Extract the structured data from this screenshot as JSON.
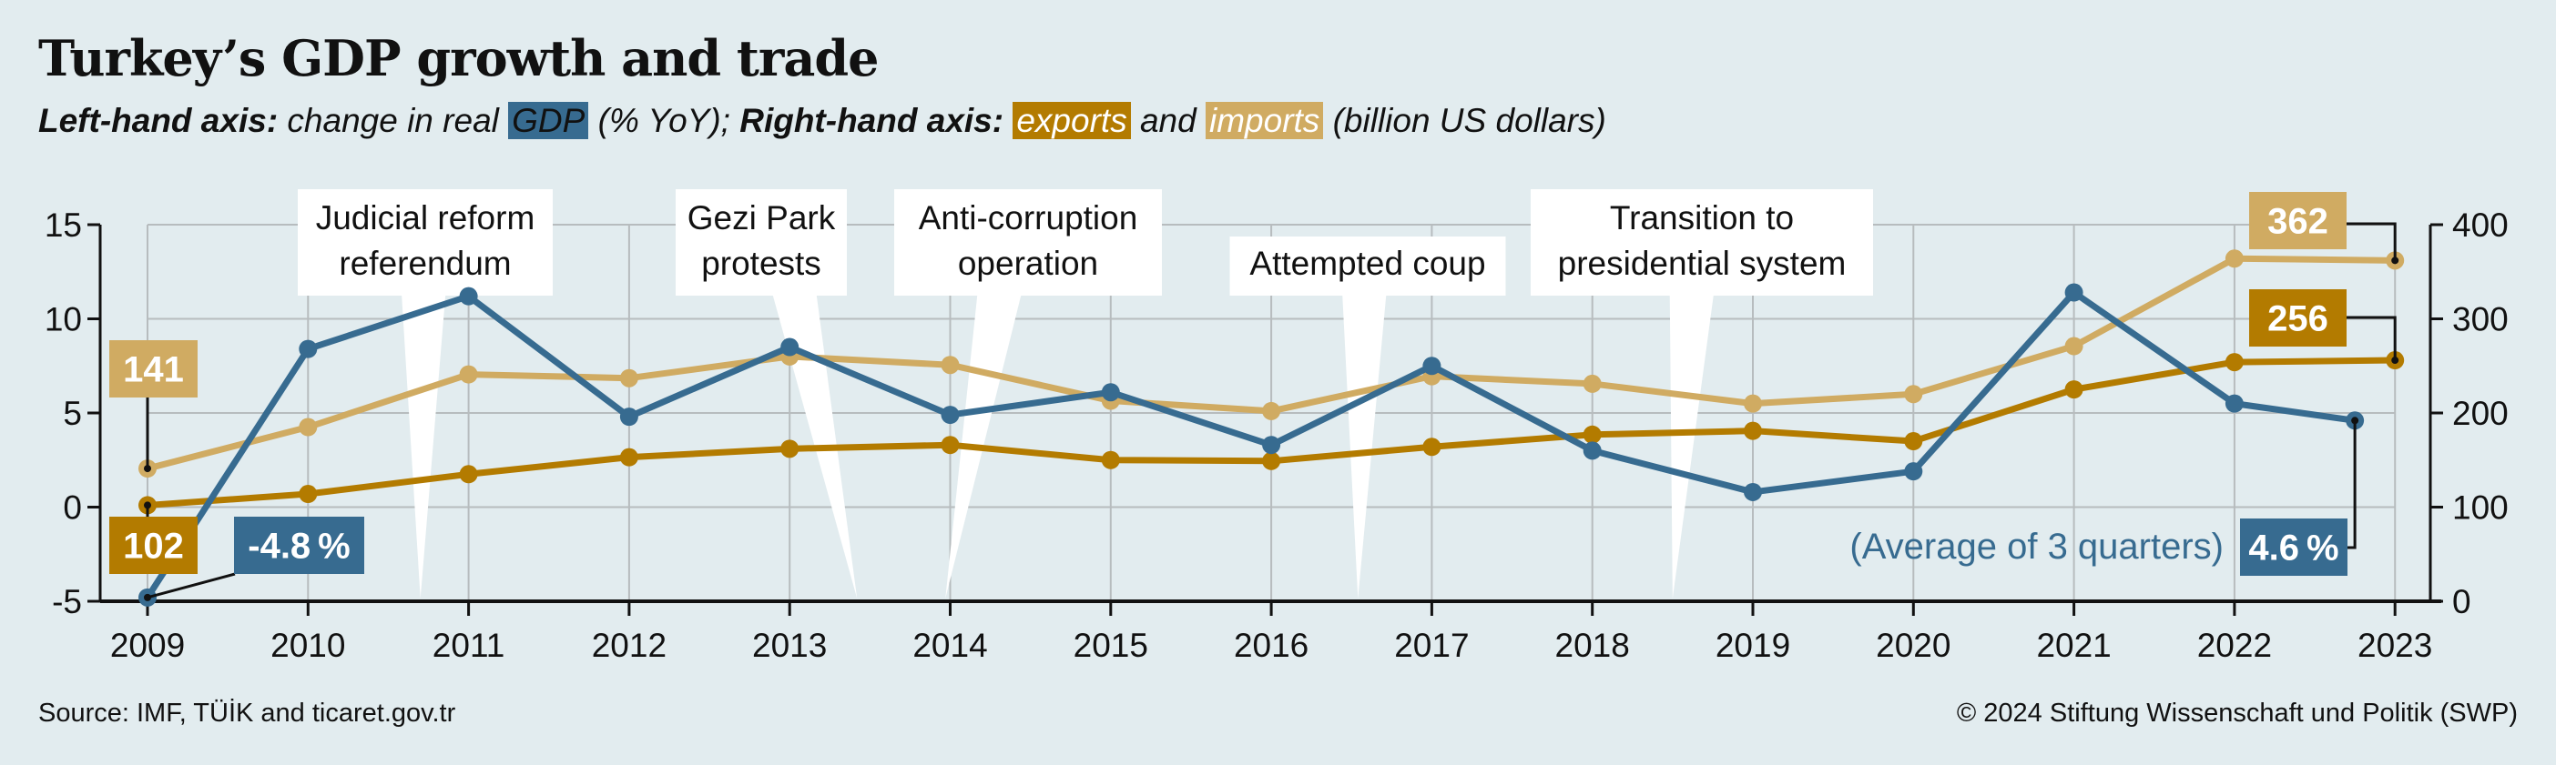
{
  "header": {
    "title": "Turkey’s GDP growth and trade",
    "subtitle": {
      "left_label": "Left-hand axis:",
      "left_text": " change in real ",
      "gdp_chip": "GDP",
      "left_unit": " (% YoY); ",
      "right_label": "Right-hand axis:",
      "exports_chip": "exports",
      "and_text": " and ",
      "imports_chip": "imports",
      "right_unit": " (billion US dollars)"
    }
  },
  "colors": {
    "background": "#e2ecef",
    "gdp": "#376b90",
    "exports": "#b37b00",
    "imports": "#d0ab62",
    "grid": "#b7bcbe",
    "annotation_box": "#ffffff"
  },
  "chart_data": {
    "type": "line",
    "title": "Turkey’s GDP growth and trade",
    "x": [
      2009,
      2010,
      2011,
      2012,
      2013,
      2014,
      2015,
      2016,
      2017,
      2018,
      2019,
      2020,
      2021,
      2022,
      2023
    ],
    "x_tick_labels": [
      "2009",
      "2010",
      "2011",
      "2012",
      "2013",
      "2014",
      "2015",
      "2016",
      "2017",
      "2018",
      "2019",
      "2020",
      "2021",
      "2022",
      "2023"
    ],
    "left_axis": {
      "label": "change in real GDP (% YoY)",
      "ylim": [
        -5,
        15
      ],
      "ticks": [
        -5,
        0,
        5,
        10,
        15
      ],
      "tick_labels": [
        "-5",
        "0",
        "5",
        "10",
        "15"
      ]
    },
    "right_axis": {
      "label": "exports and imports (billion US dollars)",
      "ylim": [
        0,
        400
      ],
      "ticks": [
        0,
        100,
        200,
        300,
        400
      ],
      "tick_labels": [
        "0",
        "100",
        "200",
        "300",
        "400"
      ]
    },
    "grid": true,
    "series": [
      {
        "name": "GDP",
        "axis": "left",
        "x": [
          2009,
          2010,
          2011,
          2012,
          2013,
          2014,
          2015,
          2016,
          2017,
          2018,
          2019,
          2020,
          2021,
          2022,
          2022.75
        ],
        "values": [
          -4.8,
          8.4,
          11.2,
          4.8,
          8.5,
          4.9,
          6.1,
          3.3,
          7.5,
          3.0,
          0.8,
          1.9,
          11.4,
          5.5,
          4.6
        ]
      },
      {
        "name": "imports",
        "axis": "right",
        "x": [
          2009,
          2010,
          2011,
          2012,
          2013,
          2014,
          2015,
          2016,
          2017,
          2018,
          2019,
          2020,
          2021,
          2022,
          2023
        ],
        "values": [
          141,
          185,
          241,
          237,
          260,
          251,
          213,
          202,
          239,
          231,
          210,
          220,
          271,
          364,
          362
        ]
      },
      {
        "name": "exports",
        "axis": "right",
        "x": [
          2009,
          2010,
          2011,
          2012,
          2013,
          2014,
          2015,
          2016,
          2017,
          2018,
          2019,
          2020,
          2021,
          2022,
          2023
        ],
        "values": [
          102,
          114,
          135,
          153,
          162,
          166,
          150,
          149,
          164,
          177,
          181,
          170,
          225,
          254,
          256
        ]
      }
    ],
    "value_labels": [
      {
        "series": "imports",
        "x": 2009,
        "text": "141"
      },
      {
        "series": "exports",
        "x": 2009,
        "text": "102"
      },
      {
        "series": "GDP",
        "x": 2009,
        "text": "-4.8 %"
      },
      {
        "series": "imports",
        "x": 2023,
        "text": "362"
      },
      {
        "series": "exports",
        "x": 2023,
        "text": "256"
      },
      {
        "series": "GDP",
        "x": 2022.75,
        "text": "4.6 %"
      }
    ],
    "annotations": [
      {
        "lines": [
          "Judicial reform",
          "referendum"
        ],
        "x": 2010.7
      },
      {
        "lines": [
          "Gezi Park",
          "protests"
        ],
        "x": 2013.42
      },
      {
        "lines": [
          "Anti-corruption",
          "operation"
        ],
        "x": 2013.97
      },
      {
        "lines": [
          "Attempted coup"
        ],
        "x": 2016.54
      },
      {
        "lines": [
          "Transition to",
          "presidential system"
        ],
        "x": 2018.5
      }
    ],
    "note": "(Average of 3 quarters)"
  },
  "footer": {
    "source": "Source: IMF, TÜİK and ticaret.gov.tr",
    "copyright": "© 2024 Stiftung Wissenschaft und Politik (SWP)"
  }
}
